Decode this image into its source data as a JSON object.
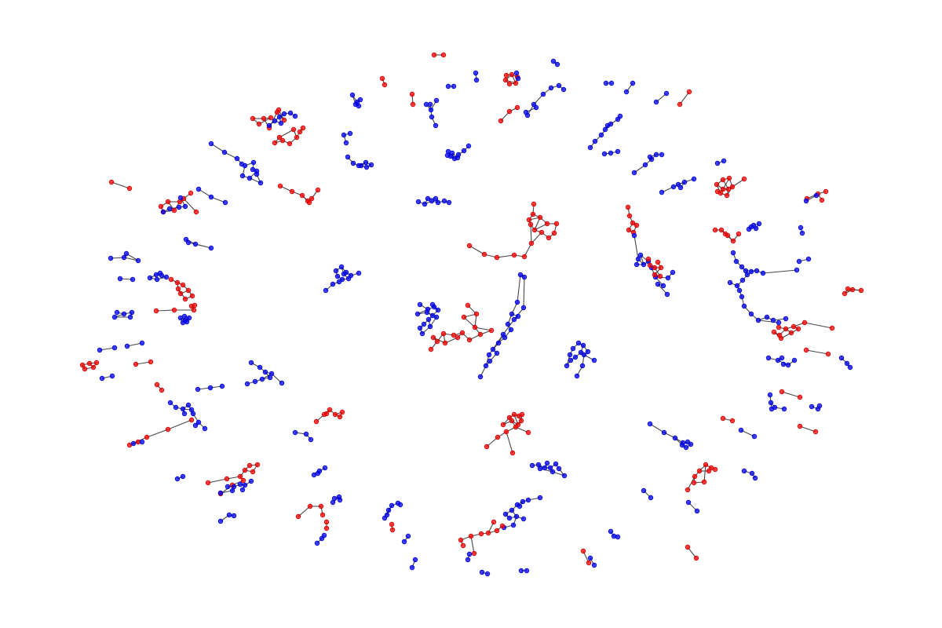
{
  "graph": {
    "colors": {
      "red": "#ff0000",
      "blue": "#0000ff",
      "red_outline": "#d00000",
      "blue_outline": "#0000cc",
      "edge": "#333333",
      "background": "#ffffff"
    }
  }
}
